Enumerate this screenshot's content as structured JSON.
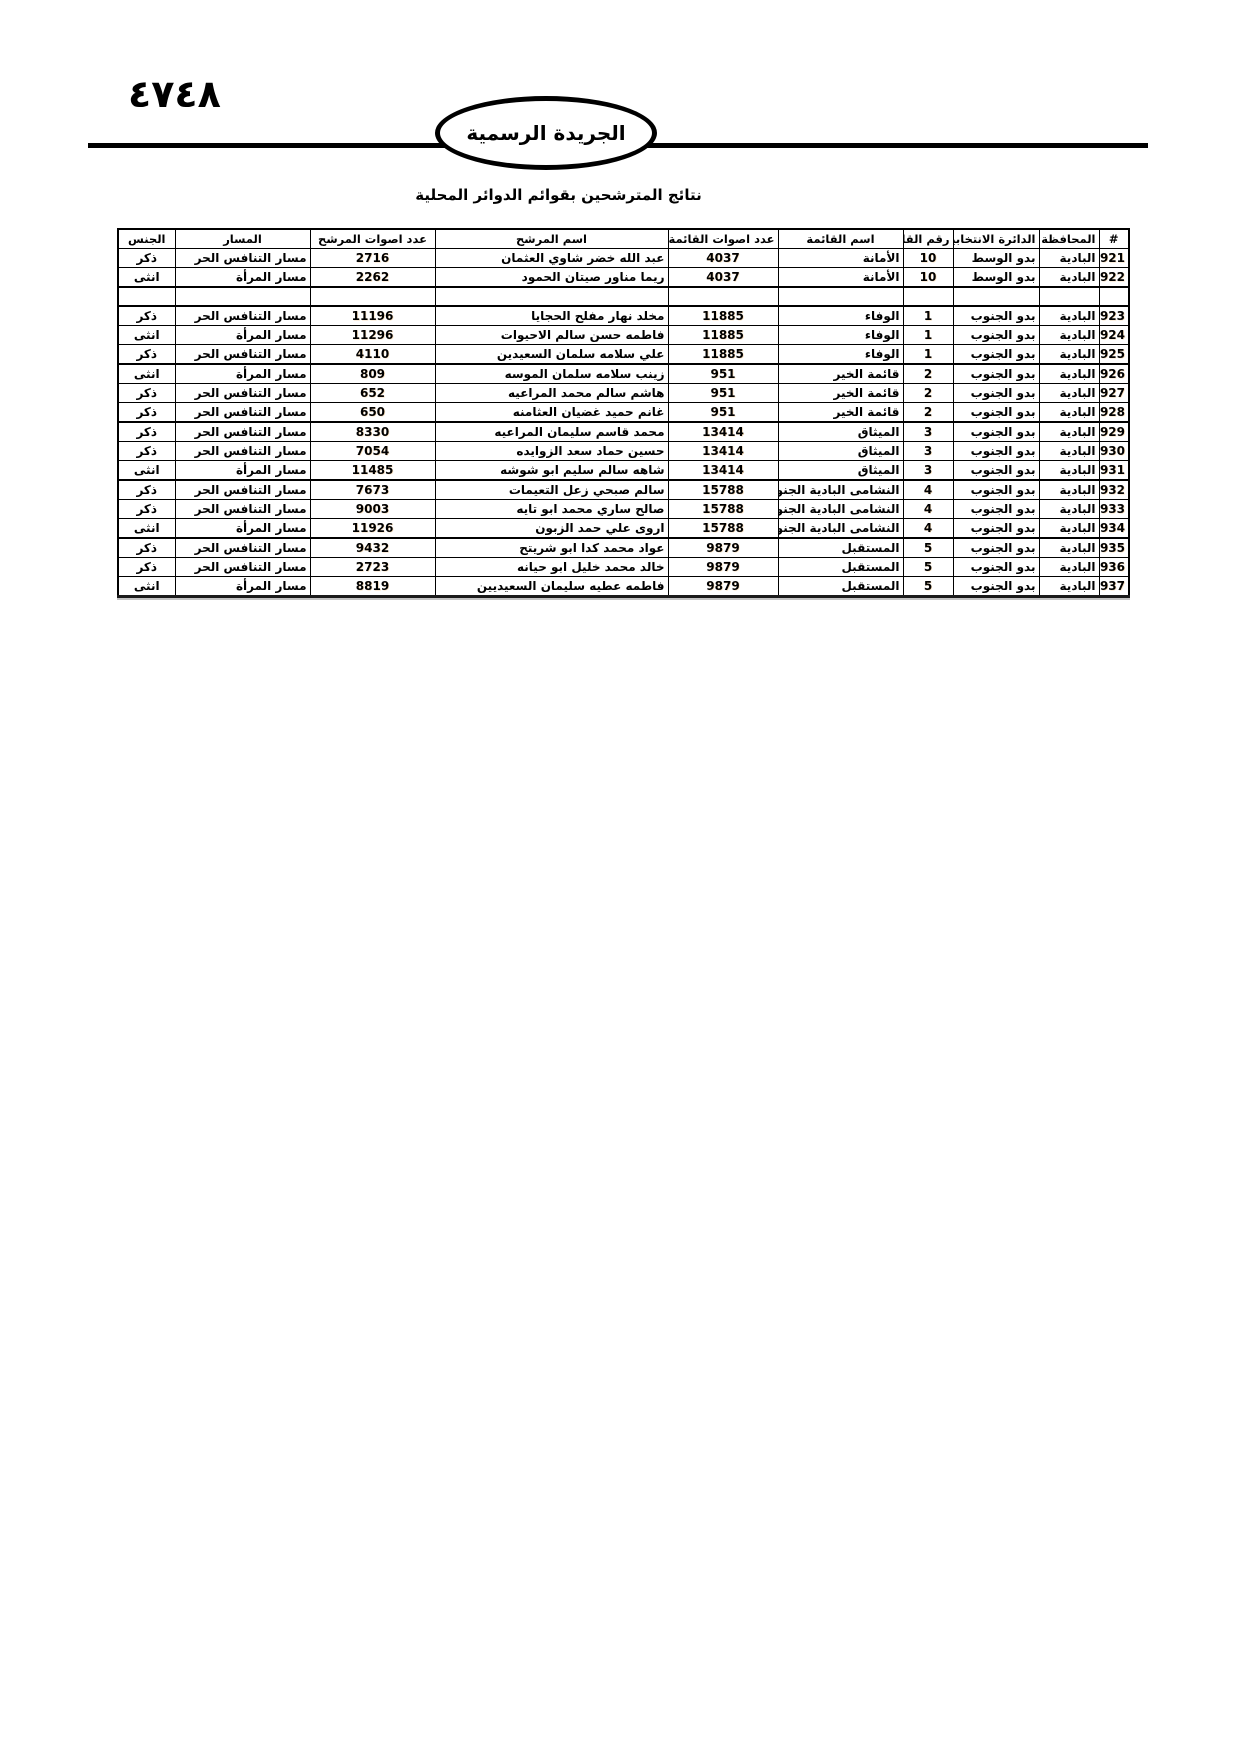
{
  "page": {
    "number_arabic": "٤٧٤٨",
    "gazette_label": "الجريدة الرسمية",
    "title": "نتائج المترشحين بقوائم  الدوائر المحلية"
  },
  "table": {
    "columns": [
      {
        "key": "row-number",
        "label": "#"
      },
      {
        "key": "governorate",
        "label": "المحافظة"
      },
      {
        "key": "district",
        "label": "الدائرة الانتخابية"
      },
      {
        "key": "list-number",
        "label": "رقم القائمة"
      },
      {
        "key": "list-name",
        "label": "اسم القائمة"
      },
      {
        "key": "list-votes",
        "label": "عدد اصوات القائمة"
      },
      {
        "key": "candidate-name",
        "label": "اسم المرشح"
      },
      {
        "key": "candidate-votes",
        "label": "عدد اصوات المرشح"
      },
      {
        "key": "track",
        "label": "المسار"
      },
      {
        "key": "gender",
        "label": "الجنس"
      }
    ],
    "rows": [
      {
        "cells": [
          "921",
          "البادية",
          "بدو الوسط",
          "10",
          "الأمانة",
          "4037",
          "عبد الله خضر شاوي العثمان",
          "2716",
          "مسار التنافس الحر",
          "ذكر"
        ]
      },
      {
        "cells": [
          "922",
          "البادية",
          "بدو الوسط",
          "10",
          "الأمانة",
          "4037",
          "ريما مناور صيتان الحمود",
          "2262",
          "مسار المرأة",
          "انثى"
        ]
      },
      {
        "cells": [
          "",
          "",
          "",
          "",
          "",
          "",
          "",
          "",
          "",
          ""
        ]
      },
      {
        "cells": [
          "923",
          "البادية",
          "بدو الجنوب",
          "1",
          "الوفاء",
          "11885",
          "مخلد نهار مفلح الحجايا",
          "11196",
          "مسار التنافس الحر",
          "ذكر"
        ]
      },
      {
        "cells": [
          "924",
          "البادية",
          "بدو الجنوب",
          "1",
          "الوفاء",
          "11885",
          "فاطمه حسن سالم الاحيوات",
          "11296",
          "مسار المرأة",
          "انثى"
        ]
      },
      {
        "cells": [
          "925",
          "البادية",
          "بدو الجنوب",
          "1",
          "الوفاء",
          "11885",
          "علي سلامه سلمان السعيدين",
          "4110",
          "مسار التنافس الحر",
          "ذكر"
        ]
      },
      {
        "cells": [
          "926",
          "البادية",
          "بدو الجنوب",
          "2",
          "قائمة الخير",
          "951",
          "زينب سلامه سلمان الموسه",
          "809",
          "مسار المرأة",
          "انثى"
        ]
      },
      {
        "cells": [
          "927",
          "البادية",
          "بدو الجنوب",
          "2",
          "قائمة الخير",
          "951",
          "هاشم سالم محمد المراعيه",
          "652",
          "مسار التنافس الحر",
          "ذكر"
        ]
      },
      {
        "cells": [
          "928",
          "البادية",
          "بدو الجنوب",
          "2",
          "قائمة الخير",
          "951",
          "غانم حميد غضيان العثامنه",
          "650",
          "مسار التنافس الحر",
          "ذكر"
        ]
      },
      {
        "cells": [
          "929",
          "البادية",
          "بدو الجنوب",
          "3",
          "الميثاق",
          "13414",
          "محمد قاسم سليمان المراعيه",
          "8330",
          "مسار التنافس الحر",
          "ذكر"
        ]
      },
      {
        "cells": [
          "930",
          "البادية",
          "بدو الجنوب",
          "3",
          "الميثاق",
          "13414",
          "حسين حماد سعد الزوايده",
          "7054",
          "مسار التنافس الحر",
          "ذكر"
        ]
      },
      {
        "cells": [
          "931",
          "البادية",
          "بدو الجنوب",
          "3",
          "الميثاق",
          "13414",
          "شاهه سالم سليم ابو شوشه",
          "11485",
          "مسار المرأة",
          "انثى"
        ]
      },
      {
        "cells": [
          "932",
          "البادية",
          "بدو الجنوب",
          "4",
          "النشامى البادية الجنوبية",
          "15788",
          "سالم صبحي زعل التعيمات",
          "7673",
          "مسار التنافس الحر",
          "ذكر"
        ]
      },
      {
        "cells": [
          "933",
          "البادية",
          "بدو الجنوب",
          "4",
          "النشامى البادية الجنوبية",
          "15788",
          "صالح ساري محمد ابو تايه",
          "9003",
          "مسار التنافس الحر",
          "ذكر"
        ]
      },
      {
        "cells": [
          "934",
          "البادية",
          "بدو الجنوب",
          "4",
          "النشامى البادية الجنوبية",
          "15788",
          "اروى علي حمد الزبون",
          "11926",
          "مسار المرأة",
          "انثى"
        ]
      },
      {
        "cells": [
          "935",
          "البادية",
          "بدو الجنوب",
          "5",
          "المستقبل",
          "9879",
          "عواد محمد كدا ابو شريتح",
          "9432",
          "مسار التنافس الحر",
          "ذكر"
        ]
      },
      {
        "cells": [
          "936",
          "البادية",
          "بدو الجنوب",
          "5",
          "المستقبل",
          "9879",
          "خالد محمد خليل ابو حيانه",
          "2723",
          "مسار التنافس الحر",
          "ذكر"
        ]
      },
      {
        "cells": [
          "937",
          "البادية",
          "بدو الجنوب",
          "5",
          "المستقبل",
          "9879",
          "فاطمه عطيه سليمان السعيديين",
          "8819",
          "مسار المرأة",
          "انثى"
        ]
      }
    ]
  },
  "colors": {
    "ink": "#000000",
    "paper": "#ffffff"
  }
}
